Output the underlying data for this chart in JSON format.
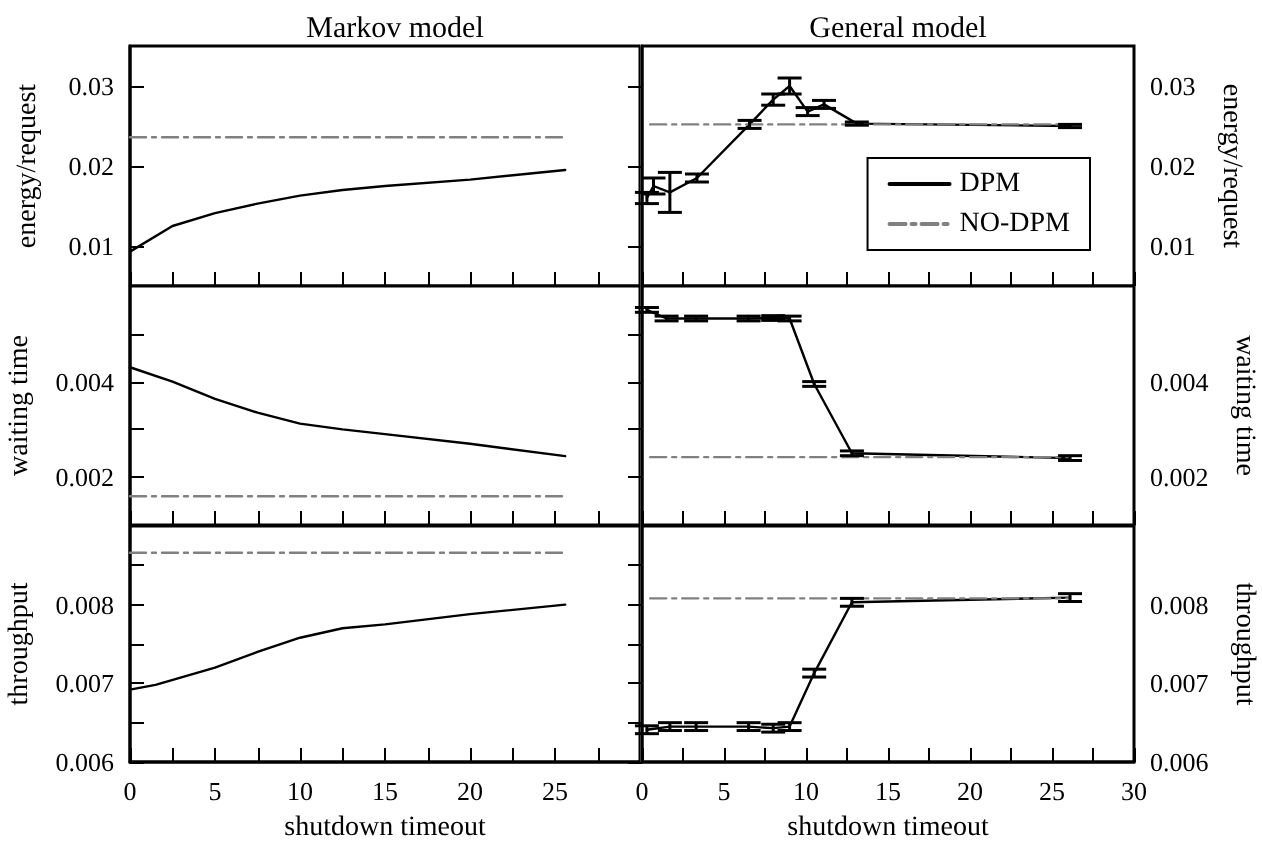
{
  "chart_data": [
    {
      "type": "line",
      "title": "Markov model",
      "ylabel": "energy/request",
      "xlim": [
        0,
        30
      ],
      "xticks": [
        0,
        {
          "value": 2.5,
          "label": null
        },
        5,
        {
          "value": 7.5,
          "label": null
        },
        10,
        {
          "value": 12.5,
          "label": null
        },
        15,
        {
          "value": 17.5,
          "label": null
        },
        20,
        {
          "value": 22.5,
          "label": null
        },
        25,
        {
          "value": 27.5,
          "label": null
        },
        {
          "value": 30,
          "label": null
        }
      ],
      "ylim": [
        0.005,
        0.035
      ],
      "yticks": [
        0.01,
        0.02,
        0.03
      ],
      "tick_labels": "y",
      "marker": "none",
      "series": [
        {
          "color": "#000000",
          "line_style": "solid",
          "x": [
            0,
            2.5,
            5,
            7.5,
            10,
            12.5,
            15,
            20,
            25.6
          ],
          "values": [
            0.0093,
            0.0125,
            0.0141,
            0.0153,
            0.0163,
            0.017,
            0.0175,
            0.0183,
            0.0195
          ]
        },
        {
          "color": "#808080",
          "line_style": "dashed",
          "x": [
            0,
            25.6
          ],
          "values": [
            0.0236,
            0.0236
          ]
        }
      ]
    },
    {
      "type": "line",
      "title": "General model",
      "y2label": "energy/request",
      "xlim": [
        0,
        30
      ],
      "xticks": [
        0,
        {
          "value": 2.5,
          "label": null
        },
        5,
        {
          "value": 7.5,
          "label": null
        },
        10,
        {
          "value": 12.5,
          "label": null
        },
        15,
        {
          "value": 17.5,
          "label": null
        },
        20,
        {
          "value": 22.5,
          "label": null
        },
        25,
        {
          "value": 27.5,
          "label": null
        },
        30
      ],
      "y2lim": [
        0.005,
        0.035
      ],
      "y2ticks": [
        0.01,
        0.02,
        0.03
      ],
      "tick_labels": "y",
      "marker": "none",
      "legend": "bottom right",
      "series": [
        {
          "name": "DPM",
          "color": "#000000",
          "line_style": "solid",
          "axis": "y2",
          "x": [
            0.3,
            0.7,
            1.7,
            3.35,
            6.56,
            8.0,
            9.0,
            10.1,
            11.1,
            13.1,
            26.1
          ],
          "values": [
            0.016,
            0.0175,
            0.0167,
            0.0185,
            0.0252,
            0.0283,
            0.03,
            0.0268,
            0.0277,
            0.0253,
            0.025
          ],
          "errors": [
            0.0007,
            0.001,
            0.0025,
            0.0005,
            0.0005,
            0.0007,
            0.001,
            0.0005,
            0.0005,
            0.0002,
            0.0002
          ]
        },
        {
          "name": "NO-DPM",
          "color": "#808080",
          "line_style": "dashed",
          "axis": "y2",
          "x": [
            0.5,
            26.1
          ],
          "values": [
            0.0252,
            0.0252
          ]
        }
      ]
    },
    {
      "type": "line",
      "ylabel": "waiting time",
      "xlim": [
        0,
        30
      ],
      "xticks": [
        0,
        {
          "value": 2.5,
          "label": null
        },
        5,
        {
          "value": 7.5,
          "label": null
        },
        10,
        {
          "value": 12.5,
          "label": null
        },
        15,
        {
          "value": 17.5,
          "label": null
        },
        20,
        {
          "value": 22.5,
          "label": null
        },
        25,
        {
          "value": 27.5,
          "label": null
        },
        {
          "value": 30,
          "label": null
        }
      ],
      "ylim": [
        0.001,
        0.006
      ],
      "yticks": [
        0.002,
        {
          "value": 0.003,
          "label": null
        },
        0.004,
        {
          "value": 0.005,
          "label": null
        }
      ],
      "tick_labels": "y",
      "marker": "none",
      "series": [
        {
          "color": "#000000",
          "line_style": "solid",
          "x": [
            0,
            2.5,
            5,
            7.5,
            10,
            12.5,
            15,
            20,
            25.6
          ],
          "values": [
            0.0043,
            0.004,
            0.00364,
            0.00335,
            0.00312,
            0.003,
            0.0029,
            0.0027,
            0.00244
          ]
        },
        {
          "color": "#808080",
          "line_style": "dashed",
          "x": [
            0,
            25.6
          ],
          "values": [
            0.0016,
            0.0016
          ]
        }
      ]
    },
    {
      "type": "line",
      "y2label": "waiting time",
      "xlim": [
        0,
        30
      ],
      "xticks": [
        0,
        {
          "value": 2.5,
          "label": null
        },
        5,
        {
          "value": 7.5,
          "label": null
        },
        10,
        {
          "value": 12.5,
          "label": null
        },
        15,
        {
          "value": 17.5,
          "label": null
        },
        20,
        {
          "value": 22.5,
          "label": null
        },
        25,
        {
          "value": 27.5,
          "label": null
        },
        30
      ],
      "y2lim": [
        0.001,
        0.006
      ],
      "y2ticks": [
        0.002,
        {
          "value": 0.003,
          "label": null
        },
        0.004,
        {
          "value": 0.005,
          "label": null
        }
      ],
      "tick_labels": "y",
      "marker": "none",
      "series": [
        {
          "color": "#000000",
          "line_style": "solid",
          "axis": "y2",
          "x": [
            0.3,
            1.5,
            3.3,
            6.5,
            8,
            9,
            10.5,
            12.8,
            26.1
          ],
          "values": [
            0.0055,
            0.00532,
            0.00532,
            0.00532,
            0.00533,
            0.00532,
            0.00395,
            0.0025,
            0.0024
          ],
          "errors": [
            5e-05,
            5e-05,
            5e-05,
            5e-05,
            5e-05,
            5e-05,
            5e-05,
            5e-05,
            5e-05
          ]
        },
        {
          "color": "#808080",
          "line_style": "dashed",
          "axis": "y2",
          "x": [
            0.5,
            26.1
          ],
          "values": [
            0.00242,
            0.00242
          ]
        }
      ]
    },
    {
      "type": "line",
      "xlabel": "shutdown timeout",
      "ylabel": "throughput",
      "xlim": [
        0,
        30
      ],
      "xticks": [
        0,
        {
          "value": 2.5,
          "label": null
        },
        5,
        {
          "value": 7.5,
          "label": null
        },
        10,
        {
          "value": 12.5,
          "label": null
        },
        15,
        {
          "value": 17.5,
          "label": null
        },
        20,
        {
          "value": 22.5,
          "label": null
        },
        25,
        {
          "value": 27.5,
          "label": null
        },
        {
          "value": 30,
          "label": null
        }
      ],
      "ylim": [
        0.006,
        0.009
      ],
      "yticks": [
        0.006,
        {
          "value": 0.0065,
          "label": null
        },
        0.007,
        {
          "value": 0.0075,
          "label": null
        },
        0.008,
        {
          "value": 0.0085,
          "label": null
        }
      ],
      "marker": "none",
      "series": [
        {
          "color": "#000000",
          "line_style": "solid",
          "x": [
            0,
            1.5,
            5,
            7.5,
            10,
            12.5,
            15,
            20,
            25.6
          ],
          "values": [
            0.00692,
            0.00698,
            0.0072,
            0.0074,
            0.00758,
            0.0077,
            0.00775,
            0.00788,
            0.008
          ]
        },
        {
          "color": "#808080",
          "line_style": "dashed",
          "x": [
            0,
            25.6
          ],
          "values": [
            0.00866,
            0.00866
          ]
        }
      ]
    },
    {
      "type": "line",
      "xlabel": "shutdown timeout",
      "y2label": "throughput",
      "xlim": [
        0,
        30
      ],
      "xticks": [
        0,
        {
          "value": 2.5,
          "label": null
        },
        5,
        {
          "value": 7.5,
          "label": null
        },
        10,
        {
          "value": 12.5,
          "label": null
        },
        15,
        {
          "value": 17.5,
          "label": null
        },
        20,
        {
          "value": 22.5,
          "label": null
        },
        25,
        {
          "value": 27.5,
          "label": null
        },
        30
      ],
      "y2lim": [
        0.006,
        0.009
      ],
      "y2ticks": [
        0.006,
        {
          "value": 0.0065,
          "label": null
        },
        0.007,
        {
          "value": 0.0075,
          "label": null
        },
        0.008,
        {
          "value": 0.0085,
          "label": null
        }
      ],
      "marker": "none",
      "series": [
        {
          "color": "#000000",
          "line_style": "solid",
          "axis": "y2",
          "x": [
            0.3,
            1.7,
            3.3,
            6.5,
            8,
            9,
            10.5,
            12.8,
            26.1
          ],
          "values": [
            0.00641,
            0.00645,
            0.00645,
            0.00645,
            0.00643,
            0.00645,
            0.00713,
            0.00803,
            0.00809
          ],
          "errors": [
            5e-05,
            5e-05,
            5e-05,
            5e-05,
            5e-05,
            5e-05,
            5e-05,
            5e-05,
            5e-05
          ]
        },
        {
          "color": "#808080",
          "line_style": "dashed",
          "axis": "y2",
          "x": [
            0.5,
            26.1
          ],
          "values": [
            0.00808,
            0.00808
          ]
        }
      ]
    }
  ]
}
